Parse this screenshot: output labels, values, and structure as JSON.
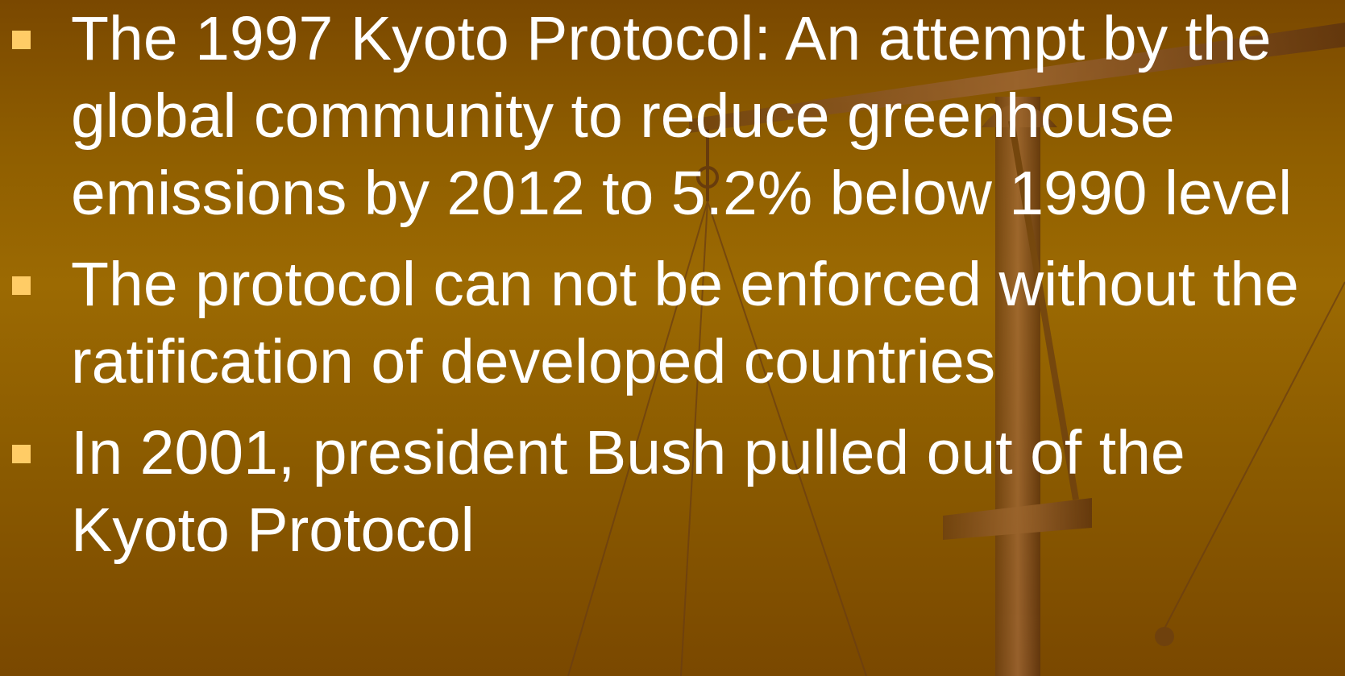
{
  "bullets": [
    "The 1997 Kyoto Protocol: An attempt by the global community to reduce greenhouse emissions by 2012 to 5.2% below 1990 level",
    "The protocol can not be enforced without the ratification of developed countries",
    "In 2001, president Bush pulled out of the Kyoto Protocol"
  ]
}
